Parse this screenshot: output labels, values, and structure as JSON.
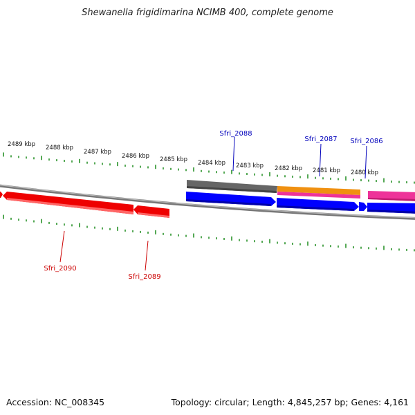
{
  "title": "Shewanella frigidimarina NCIMB 400, complete genome",
  "scale_labels": [
    "2489 kbp",
    "2488 kbp",
    "2487 kbp",
    "2486 kbp",
    "2485 kbp",
    "2484 kbp",
    "2483 kbp",
    "2482 kbp",
    "2481 kbp",
    "2480 kbp"
  ],
  "genes": [
    {
      "name": "Sfri_2090",
      "strand": "reverse",
      "color": "#ee0000"
    },
    {
      "name": "Sfri_2089",
      "strand": "reverse",
      "color": "#ee0000"
    },
    {
      "name": "Sfri_2088",
      "strand": "forward",
      "color": "#0000cc"
    },
    {
      "name": "Sfri_2087",
      "strand": "forward",
      "color": "#0000cc"
    },
    {
      "name": "Sfri_2086",
      "strand": "forward",
      "color": "#0000cc"
    }
  ],
  "colors": {
    "reverse_strand": "#ee0000",
    "forward_strand": "#0000ff",
    "feature_gray": "#666666",
    "feature_orange": "#f09010",
    "feature_pink": "#ee3399",
    "backbone": "#888888",
    "ticks": "#1a8a1a",
    "forward_label": "#0000bb",
    "reverse_label": "#cc0000"
  },
  "footer": {
    "accession": "Accession: NC_008345",
    "summary": "Topology: circular; Length: 4,845,257 bp; Genes: 4,161"
  }
}
